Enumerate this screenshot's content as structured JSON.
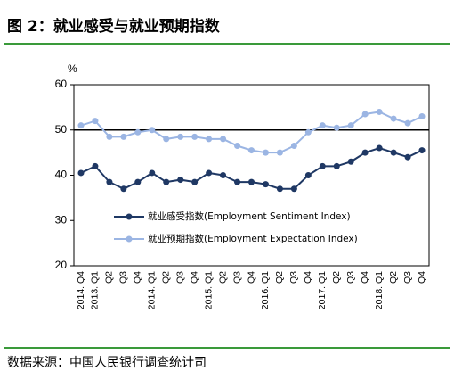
{
  "chart_data": {
    "type": "line",
    "title": "图 2：就业感受与就业预期指数",
    "source": "数据来源：中国人民银行调查统计司",
    "y_label": "%",
    "categories": [
      "2014. Q4",
      "2013. Q1",
      "Q2",
      "Q3",
      "Q4",
      "2014. Q1",
      "Q2",
      "Q3",
      "Q4",
      "2015. Q1",
      "Q2",
      "Q3",
      "Q4",
      "2016. Q1",
      "Q2",
      "Q3",
      "Q4",
      "2017. Q1",
      "Q2",
      "Q3",
      "Q4",
      "2018. Q1",
      "Q2",
      "Q3",
      "Q4"
    ],
    "series": [
      {
        "name": "就业感受指数(Employment Sentiment Index)",
        "color": "#1f3864",
        "values": [
          40.5,
          42,
          38.5,
          37,
          38.5,
          40.5,
          38.5,
          39,
          38.5,
          40.5,
          40,
          38.5,
          38.5,
          38,
          37,
          37,
          40,
          42,
          42,
          43,
          45,
          46,
          45,
          44,
          45.5
        ]
      },
      {
        "name": "就业预期指数(Employment Expectation Index)",
        "color": "#9bb5e3",
        "values": [
          51,
          52,
          48.5,
          48.5,
          49.5,
          50,
          48,
          48.5,
          48.5,
          48,
          48,
          46.5,
          45.5,
          45,
          45,
          46.5,
          49.5,
          51,
          50.5,
          51,
          53.5,
          54,
          52.5,
          51.5,
          53
        ]
      }
    ],
    "ylim": [
      20,
      60
    ],
    "yticks": [
      20,
      30,
      40,
      50,
      60
    ],
    "reference_line": 50
  }
}
